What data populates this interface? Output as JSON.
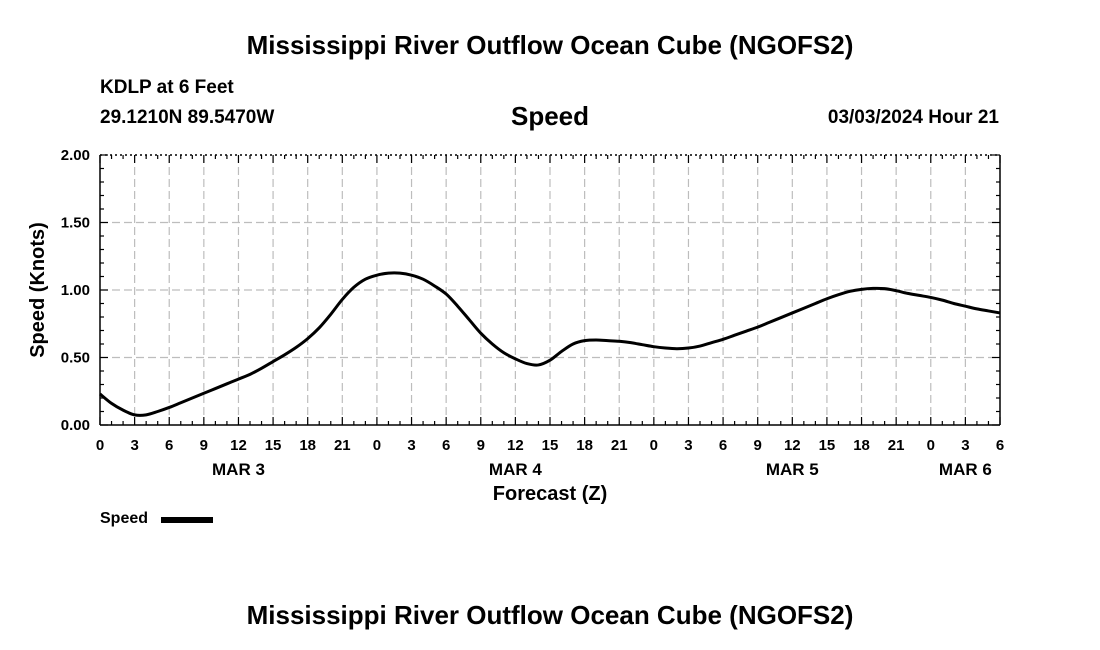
{
  "header": {
    "title": "Mississippi River Outflow Ocean Cube (NGOFS2)",
    "station": "KDLP at 6 Feet",
    "coords": "29.1210N  89.5470W",
    "variable": "Speed",
    "datetime": "03/03/2024 Hour 21"
  },
  "footer": {
    "title": "Mississippi River Outflow Ocean Cube (NGOFS2)"
  },
  "legend": {
    "label": "Speed",
    "color": "#000000"
  },
  "chart_data": {
    "type": "line",
    "title": "Speed",
    "xlabel": "Forecast (Z)",
    "ylabel": "Speed (Knots)",
    "xlim": [
      0,
      78
    ],
    "ylim": [
      0,
      2
    ],
    "x_unit": "hours since MAR 3 00Z",
    "yticks": [
      "0.00",
      "0.50",
      "1.00",
      "1.50",
      "2.00"
    ],
    "ytick_values": [
      0,
      0.5,
      1.0,
      1.5,
      2.0
    ],
    "xtick_hours": [
      0,
      3,
      6,
      9,
      12,
      15,
      18,
      21,
      24,
      27,
      30,
      33,
      36,
      39,
      42,
      45,
      48,
      51,
      54,
      57,
      60,
      63,
      66,
      69,
      72,
      75,
      78
    ],
    "xtick_labels": [
      "0",
      "3",
      "6",
      "9",
      "12",
      "15",
      "18",
      "21",
      "0",
      "3",
      "6",
      "9",
      "12",
      "15",
      "18",
      "21",
      "0",
      "3",
      "6",
      "9",
      "12",
      "15",
      "18",
      "21",
      "0",
      "3",
      "6"
    ],
    "date_labels": [
      {
        "label": "MAR 3",
        "hour": 12
      },
      {
        "label": "MAR 4",
        "hour": 36
      },
      {
        "label": "MAR 5",
        "hour": 60
      },
      {
        "label": "MAR 6",
        "hour": 75
      }
    ],
    "grid": true,
    "series": [
      {
        "name": "Speed",
        "color": "#000000",
        "x": [
          0,
          1,
          2,
          3,
          4,
          5,
          6,
          7,
          8,
          9,
          10,
          11,
          12,
          13,
          14,
          15,
          16,
          17,
          18,
          19,
          20,
          21,
          22,
          23,
          24,
          25,
          26,
          27,
          28,
          29,
          30,
          31,
          32,
          33,
          34,
          35,
          36,
          37,
          38,
          39,
          40,
          41,
          42,
          43,
          44,
          45,
          46,
          47,
          48,
          49,
          50,
          51,
          52,
          53,
          54,
          55,
          56,
          57,
          58,
          59,
          60,
          61,
          62,
          63,
          64,
          65,
          66,
          67,
          68,
          69,
          70,
          71,
          72,
          73,
          74,
          75,
          76,
          77,
          78
        ],
        "values": [
          0.23,
          0.16,
          0.11,
          0.075,
          0.075,
          0.1,
          0.13,
          0.165,
          0.2,
          0.235,
          0.27,
          0.305,
          0.34,
          0.375,
          0.42,
          0.47,
          0.52,
          0.575,
          0.64,
          0.72,
          0.82,
          0.93,
          1.02,
          1.08,
          1.11,
          1.125,
          1.125,
          1.11,
          1.08,
          1.03,
          0.97,
          0.88,
          0.78,
          0.68,
          0.6,
          0.535,
          0.49,
          0.455,
          0.445,
          0.48,
          0.545,
          0.6,
          0.625,
          0.63,
          0.625,
          0.62,
          0.61,
          0.595,
          0.58,
          0.57,
          0.565,
          0.57,
          0.585,
          0.61,
          0.635,
          0.665,
          0.695,
          0.725,
          0.76,
          0.795,
          0.83,
          0.865,
          0.9,
          0.935,
          0.965,
          0.99,
          1.005,
          1.012,
          1.01,
          0.995,
          0.975,
          0.96,
          0.945,
          0.925,
          0.9,
          0.88,
          0.86,
          0.845,
          0.83
        ]
      }
    ]
  }
}
